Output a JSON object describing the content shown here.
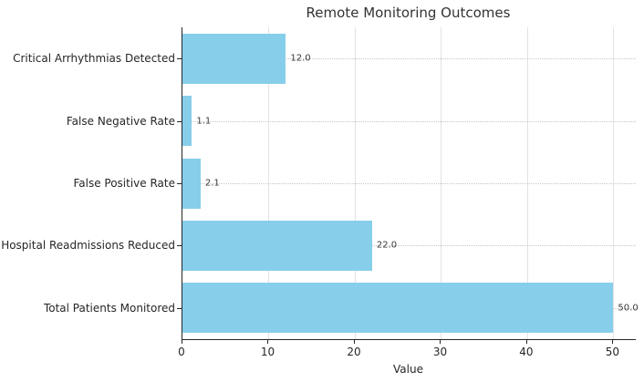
{
  "figure": {
    "title": "Remote Monitoring Outcomes"
  },
  "chart_data": {
    "type": "bar",
    "orientation": "horizontal",
    "title": "Remote Monitoring Outcomes",
    "xlabel": "Value",
    "ylabel": "",
    "categories": [
      "Critical Arrhythmias Detected",
      "False Negative Rate",
      "False Positive Rate",
      "Hospital Readmissions Reduced",
      "Total Patients Monitored"
    ],
    "values": [
      12.0,
      1.1,
      2.1,
      22.0,
      50.0
    ],
    "value_labels": [
      "12.0",
      "1.1",
      "2.1",
      "22.0",
      "50.0"
    ],
    "xticks": [
      0,
      10,
      20,
      30,
      40,
      50
    ],
    "xtick_labels": [
      "0",
      "10",
      "20",
      "30",
      "40",
      "50"
    ],
    "xlim": [
      0,
      52.6
    ],
    "grid": true,
    "legend_position": "none",
    "bar_color": "#87CEEB",
    "spine_color": "#262626",
    "vgrid_color": "#e2e2e2",
    "hgrid_color": "#c6c6c6",
    "text_color": "#262626"
  }
}
